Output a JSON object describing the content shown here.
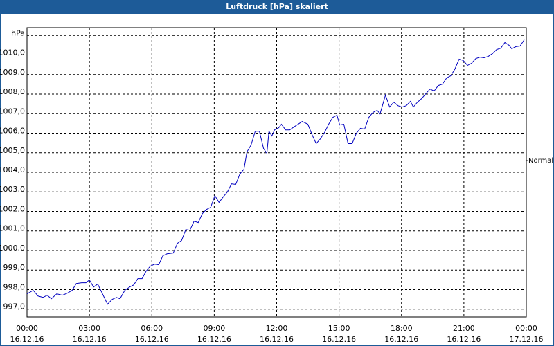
{
  "chart_data": {
    "type": "line",
    "title": "Luftdruck [hPa] skaliert",
    "xlim": [
      0,
      24
    ],
    "ylim": [
      996.6,
      1011.4
    ],
    "xticks": [
      {
        "value": 0,
        "label": "00:00"
      },
      {
        "value": 3,
        "label": "03:00"
      },
      {
        "value": 6,
        "label": "06:00"
      },
      {
        "value": 9,
        "label": "09:00"
      },
      {
        "value": 12,
        "label": "12:00"
      },
      {
        "value": 15,
        "label": "15:00"
      },
      {
        "value": 18,
        "label": "18:00"
      },
      {
        "value": 21,
        "label": "21:00"
      },
      {
        "value": 24,
        "label": "00:00"
      }
    ],
    "xtick_dates": [
      "16.12.16",
      "16.12.16",
      "16.12.16",
      "16.12.16",
      "16.12.16",
      "16.12.16",
      "16.12.16",
      "16.12.16",
      "17.12.16"
    ],
    "yticks": [
      {
        "value": 997,
        "label": "997,0"
      },
      {
        "value": 998,
        "label": "998,0"
      },
      {
        "value": 999,
        "label": "999,0"
      },
      {
        "value": 1000,
        "label": "1000,0"
      },
      {
        "value": 1001,
        "label": "1001,0"
      },
      {
        "value": 1002,
        "label": "1002,0"
      },
      {
        "value": 1003,
        "label": "1003,0"
      },
      {
        "value": 1004,
        "label": "1004,0"
      },
      {
        "value": 1005,
        "label": "1005,0"
      },
      {
        "value": 1006,
        "label": "1006,0"
      },
      {
        "value": 1007,
        "label": "1007,0"
      },
      {
        "value": 1008,
        "label": "1008,0"
      },
      {
        "value": 1009,
        "label": "1009,0"
      },
      {
        "value": 1010,
        "label": "1010,0"
      },
      {
        "value": 1011,
        "label": "hPa"
      }
    ],
    "grid": true,
    "annotation": {
      "text": "Normal",
      "y": 1004.6
    },
    "series": [
      {
        "color": "#0000c0",
        "x": [
          0,
          0.3,
          0.53,
          0.77,
          0.97,
          1.17,
          1.43,
          1.7,
          1.93,
          2.17,
          2.37,
          2.63,
          2.83,
          3,
          3.2,
          3.4,
          3.63,
          3.87,
          4.1,
          4.3,
          4.47,
          4.7,
          4.93,
          5.13,
          5.33,
          5.53,
          5.73,
          5.93,
          6.13,
          6.33,
          6.53,
          6.73,
          7.03,
          7.23,
          7.43,
          7.63,
          7.83,
          8.03,
          8.23,
          8.43,
          8.63,
          8.83,
          9.03,
          9.23,
          9.43,
          9.63,
          9.83,
          10.03,
          10.23,
          10.43,
          10.57,
          10.77,
          10.97,
          11.17,
          11.37,
          11.53,
          11.63,
          11.77,
          11.9,
          12.1,
          12.23,
          12.43,
          12.63,
          12.83,
          13.03,
          13.23,
          13.5,
          13.7,
          13.9,
          14.1,
          14.3,
          14.5,
          14.7,
          14.9,
          15.03,
          15.23,
          15.43,
          15.63,
          15.83,
          16.03,
          16.23,
          16.43,
          16.63,
          16.83,
          16.97,
          17.23,
          17.43,
          17.63,
          17.83,
          18.03,
          18.23,
          18.43,
          18.57,
          18.77,
          18.97,
          19.17,
          19.37,
          19.57,
          19.77,
          19.97,
          20.17,
          20.37,
          20.57,
          20.77,
          20.97,
          21.17,
          21.37,
          21.57,
          21.77,
          21.97,
          22.17,
          22.37,
          22.57,
          22.77,
          22.97,
          23.17,
          23.3,
          23.5,
          23.7,
          23.9
        ],
        "values": [
          997.78,
          997.96,
          997.67,
          997.6,
          997.71,
          997.53,
          997.78,
          997.71,
          997.81,
          997.96,
          998.31,
          998.35,
          998.35,
          998.49,
          998.13,
          998.28,
          997.78,
          997.25,
          997.5,
          997.6,
          997.53,
          997.96,
          998.13,
          998.24,
          998.56,
          998.56,
          998.95,
          999.2,
          999.3,
          999.27,
          999.73,
          999.83,
          999.87,
          1000.37,
          1000.51,
          1001.07,
          1001.04,
          1001.5,
          1001.43,
          1001.89,
          1002.1,
          1002.21,
          1002.81,
          1002.46,
          1002.74,
          1002.99,
          1003.41,
          1003.38,
          1003.91,
          1004.16,
          1005.04,
          1005.4,
          1006.1,
          1006.1,
          1005.22,
          1004.97,
          1006.1,
          1005.86,
          1006.17,
          1006.28,
          1006.46,
          1006.17,
          1006.17,
          1006.32,
          1006.46,
          1006.6,
          1006.46,
          1005.93,
          1005.47,
          1005.71,
          1006.03,
          1006.46,
          1006.81,
          1006.92,
          1006.42,
          1006.46,
          1005.47,
          1005.47,
          1006.0,
          1006.25,
          1006.21,
          1006.81,
          1007.06,
          1007.17,
          1006.99,
          1007.95,
          1007.34,
          1007.59,
          1007.41,
          1007.34,
          1007.41,
          1007.63,
          1007.34,
          1007.59,
          1007.77,
          1008.02,
          1008.26,
          1008.16,
          1008.44,
          1008.51,
          1008.83,
          1008.94,
          1009.29,
          1009.79,
          1009.72,
          1009.47,
          1009.58,
          1009.82,
          1009.89,
          1009.86,
          1009.93,
          1010.07,
          1010.28,
          1010.35,
          1010.64,
          1010.5,
          1010.32,
          1010.43,
          1010.46,
          1010.78
        ]
      }
    ]
  }
}
